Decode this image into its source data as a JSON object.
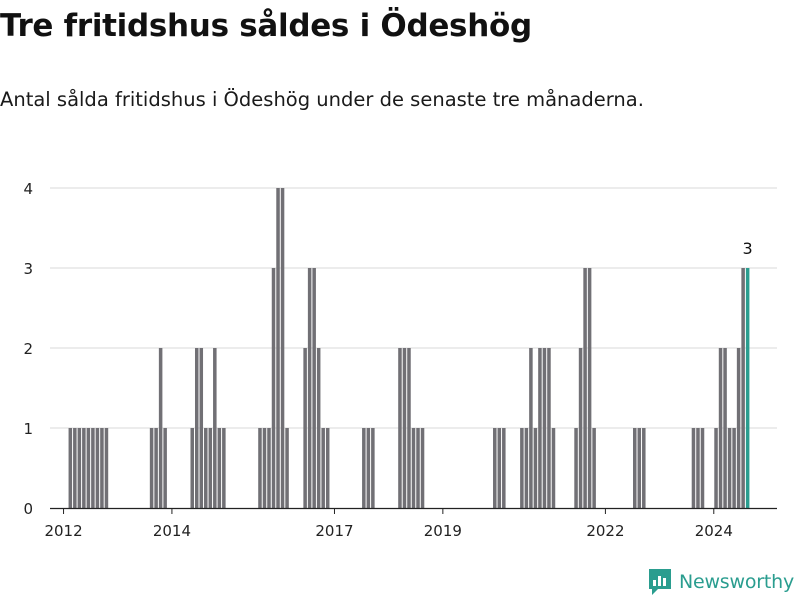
{
  "title": "Tre fritidshus såldes i Ödeshög",
  "subtitle": "Antal sålda fritidshus i Ödeshög under de senaste tre månaderna.",
  "brand": "Newsworthy",
  "colors": {
    "bar": "#717075",
    "highlight": "#2a9d8f",
    "grid": "#d9d9d9",
    "axis": "#222222",
    "brand": "#2a9d8f"
  },
  "chart_data": {
    "type": "bar",
    "title": "",
    "xlabel": "",
    "ylabel": "",
    "ylim": [
      0,
      4
    ],
    "y_ticks": [
      0,
      1,
      2,
      3,
      4
    ],
    "x_tick_labels": [
      "2012",
      "2014",
      "2017",
      "2019",
      "2022",
      "2024"
    ],
    "x_range": [
      "2011-10",
      "2025-03"
    ],
    "grid": true,
    "highlight_label": "3",
    "series": [
      {
        "values": [
          [
            "2012-02",
            1
          ],
          [
            "2012-03",
            1
          ],
          [
            "2012-04",
            1
          ],
          [
            "2012-05",
            1
          ],
          [
            "2012-06",
            1
          ],
          [
            "2012-07",
            1
          ],
          [
            "2012-08",
            1
          ],
          [
            "2012-09",
            1
          ],
          [
            "2012-10",
            1
          ],
          [
            "2013-08",
            1
          ],
          [
            "2013-09",
            1
          ],
          [
            "2013-10",
            2
          ],
          [
            "2013-11",
            1
          ],
          [
            "2014-05",
            1
          ],
          [
            "2014-06",
            2
          ],
          [
            "2014-07",
            2
          ],
          [
            "2014-08",
            1
          ],
          [
            "2014-09",
            1
          ],
          [
            "2014-10",
            2
          ],
          [
            "2014-11",
            1
          ],
          [
            "2014-12",
            1
          ],
          [
            "2015-08",
            1
          ],
          [
            "2015-09",
            1
          ],
          [
            "2015-10",
            1
          ],
          [
            "2015-11",
            3
          ],
          [
            "2015-12",
            4
          ],
          [
            "2016-01",
            4
          ],
          [
            "2016-02",
            1
          ],
          [
            "2016-06",
            2
          ],
          [
            "2016-07",
            3
          ],
          [
            "2016-08",
            3
          ],
          [
            "2016-09",
            2
          ],
          [
            "2016-10",
            1
          ],
          [
            "2016-11",
            1
          ],
          [
            "2017-07",
            1
          ],
          [
            "2017-08",
            1
          ],
          [
            "2017-09",
            1
          ],
          [
            "2018-03",
            2
          ],
          [
            "2018-04",
            2
          ],
          [
            "2018-05",
            2
          ],
          [
            "2018-06",
            1
          ],
          [
            "2018-07",
            1
          ],
          [
            "2018-08",
            1
          ],
          [
            "2019-12",
            1
          ],
          [
            "2020-01",
            1
          ],
          [
            "2020-02",
            1
          ],
          [
            "2020-06",
            1
          ],
          [
            "2020-07",
            1
          ],
          [
            "2020-08",
            2
          ],
          [
            "2020-09",
            1
          ],
          [
            "2020-10",
            2
          ],
          [
            "2020-11",
            2
          ],
          [
            "2020-12",
            2
          ],
          [
            "2021-01",
            1
          ],
          [
            "2021-06",
            1
          ],
          [
            "2021-07",
            2
          ],
          [
            "2021-08",
            3
          ],
          [
            "2021-09",
            3
          ],
          [
            "2021-10",
            1
          ],
          [
            "2022-07",
            1
          ],
          [
            "2022-08",
            1
          ],
          [
            "2022-09",
            1
          ],
          [
            "2023-08",
            1
          ],
          [
            "2023-09",
            1
          ],
          [
            "2023-10",
            1
          ],
          [
            "2024-01",
            1
          ],
          [
            "2024-02",
            2
          ],
          [
            "2024-03",
            2
          ],
          [
            "2024-04",
            1
          ],
          [
            "2024-05",
            1
          ],
          [
            "2024-06",
            2
          ],
          [
            "2024-07",
            3
          ],
          [
            "2024-08",
            3
          ]
        ]
      }
    ]
  }
}
